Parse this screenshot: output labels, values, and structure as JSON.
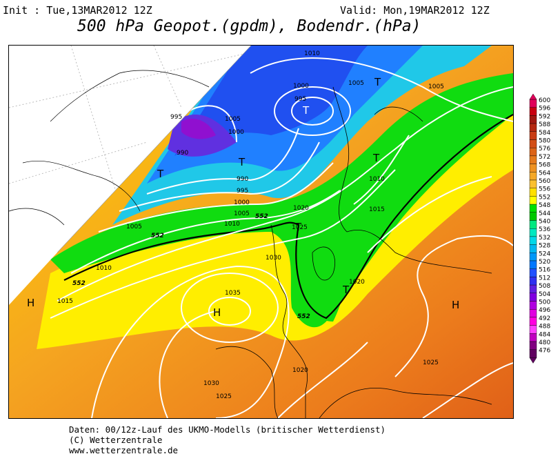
{
  "header": {
    "init": "Init : Tue,13MAR2012 12Z",
    "valid": "Valid: Mon,19MAR2012 12Z",
    "title": "500 hPa Geopot.(gpdm), Bodendr.(hPa)"
  },
  "footer": {
    "line1": "Daten: 00/12z-Lauf des UKMO-Modells (britischer Wetterdienst)",
    "line2": "(C) Wetterzentrale",
    "line3": "www.wetterzentrale.de"
  },
  "legend": {
    "levels": [
      "600",
      "596",
      "592",
      "588",
      "584",
      "580",
      "576",
      "572",
      "568",
      "564",
      "560",
      "556",
      "552",
      "548",
      "544",
      "540",
      "536",
      "532",
      "528",
      "524",
      "520",
      "516",
      "512",
      "508",
      "504",
      "500",
      "496",
      "492",
      "488",
      "484",
      "480",
      "476"
    ],
    "colors": [
      "#e0005a",
      "#c80010",
      "#a01810",
      "#b42810",
      "#c83c14",
      "#d24e16",
      "#dc6418",
      "#e57a1c",
      "#ee9222",
      "#f4a828",
      "#fac030",
      "#ffe000",
      "#ffff00",
      "#00e000",
      "#00c800",
      "#00e880",
      "#00e8c0",
      "#00d8e8",
      "#00b8f0",
      "#0098f8",
      "#0078ff",
      "#2050ff",
      "#3030f0",
      "#6020e0",
      "#8000e0",
      "#b000e0",
      "#e000e0",
      "#ff00e0",
      "#ff40ff",
      "#c000c0",
      "#800080",
      "#600060"
    ]
  },
  "map_labels": {
    "highs": [
      "H",
      "H",
      "H"
    ],
    "lows": [
      "T",
      "T",
      "T",
      "T",
      "T",
      "T",
      "T"
    ],
    "isobars": [
      "1010",
      "1005",
      "1005",
      "1000",
      "995",
      "995",
      "1005",
      "1000",
      "990",
      "990",
      "995",
      "1000",
      "1005",
      "1010",
      "1005",
      "1010",
      "1020",
      "1025",
      "1015",
      "1010",
      "1030",
      "1035",
      "1015",
      "1020",
      "1030",
      "1025",
      "1020",
      "1025"
    ],
    "geopot": [
      "552",
      "552",
      "552",
      "552"
    ]
  }
}
